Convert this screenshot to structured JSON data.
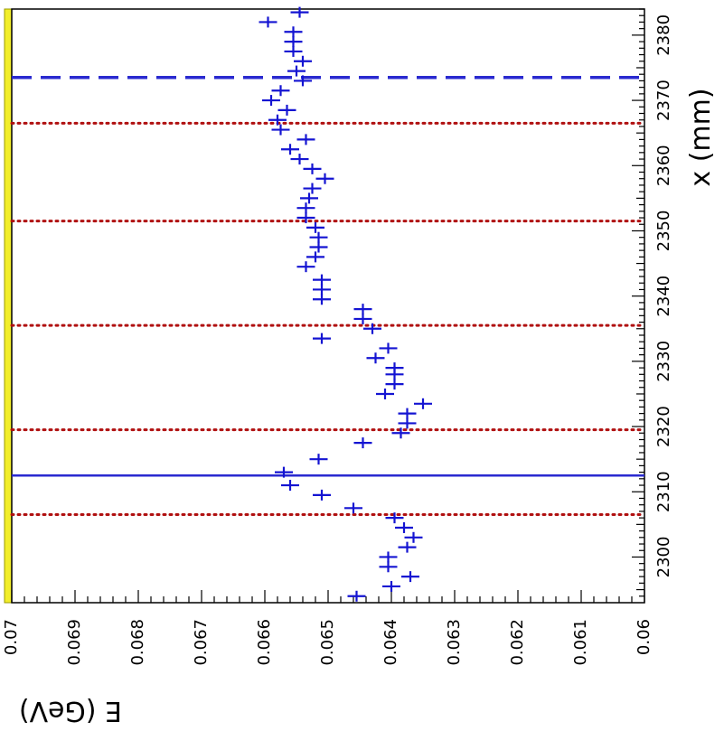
{
  "chart_data": {
    "type": "scatter",
    "orientation": "rotated-90",
    "xlabel": "x (mm)",
    "ylabel": "E (GeV)",
    "xlim": [
      2293,
      2384
    ],
    "ylim": [
      0.06,
      0.07
    ],
    "x_ticks": [
      "2300",
      "2310",
      "2320",
      "2330",
      "2340",
      "2350",
      "2360",
      "2370",
      "2380"
    ],
    "y_ticks": [
      "0.06",
      "0.061",
      "0.062",
      "0.063",
      "0.064",
      "0.065",
      "0.066",
      "0.067",
      "0.068",
      "0.069",
      "0.07"
    ],
    "grid": false,
    "reference_lines": [
      {
        "x": 2306.5,
        "style": "dotted",
        "color": "#b01010"
      },
      {
        "x": 2312.5,
        "style": "solid",
        "color": "#2a2ad0"
      },
      {
        "x": 2319.5,
        "style": "dotted",
        "color": "#b01010"
      },
      {
        "x": 2335.5,
        "style": "dotted",
        "color": "#b01010"
      },
      {
        "x": 2351.5,
        "style": "dotted",
        "color": "#b01010"
      },
      {
        "x": 2366.5,
        "style": "dotted",
        "color": "#b01010"
      },
      {
        "x": 2373.5,
        "style": "dashed",
        "color": "#2a2ad0"
      }
    ],
    "series": [
      {
        "color": "#1414d2",
        "x": [
          2294,
          2295.5,
          2297,
          2298.5,
          2300,
          2301.5,
          2303,
          2304.5,
          2306,
          2307.5,
          2309.5,
          2311,
          2313,
          2315,
          2317.5,
          2319,
          2320.5,
          2322,
          2323.5,
          2325,
          2326.5,
          2328,
          2329,
          2330.5,
          2332,
          2333.5,
          2335,
          2336.5,
          2338,
          2339.5,
          2341,
          2342.5,
          2344.5,
          2346,
          2347.5,
          2349,
          2350.5,
          2352,
          2353.5,
          2355,
          2356.5,
          2358,
          2359.5,
          2361,
          2362.5,
          2364,
          2365.5,
          2367,
          2368.5,
          2370,
          2371.5,
          2373,
          2374.5,
          2376,
          2377.5,
          2379,
          2380.5,
          2382,
          2383.5
        ],
        "y": [
          0.06455,
          0.064,
          0.0637,
          0.06405,
          0.06405,
          0.06375,
          0.06365,
          0.0638,
          0.06395,
          0.0646,
          0.0651,
          0.0656,
          0.0657,
          0.06515,
          0.06445,
          0.06385,
          0.06375,
          0.06375,
          0.0635,
          0.0641,
          0.06395,
          0.06395,
          0.06395,
          0.06425,
          0.06405,
          0.0651,
          0.0643,
          0.06445,
          0.06445,
          0.0651,
          0.0651,
          0.0651,
          0.06535,
          0.0652,
          0.06515,
          0.06515,
          0.0652,
          0.06535,
          0.06535,
          0.0653,
          0.06525,
          0.06505,
          0.06525,
          0.06545,
          0.0656,
          0.06535,
          0.06575,
          0.0658,
          0.06565,
          0.0659,
          0.06575,
          0.0654,
          0.0655,
          0.0654,
          0.06555,
          0.06555,
          0.06555,
          0.06595,
          0.06545
        ]
      }
    ]
  }
}
